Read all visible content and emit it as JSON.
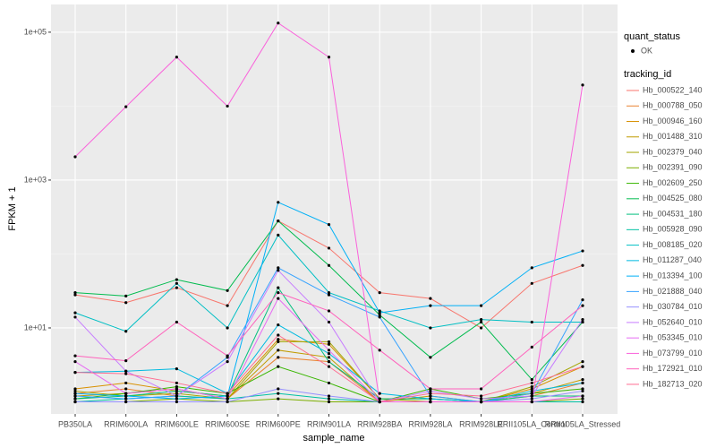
{
  "chart_data": {
    "type": "line",
    "x_label": "sample_name",
    "y_label": "FPKM + 1",
    "categories": [
      "PB350LA",
      "RRIM600LA",
      "RRIM600LE",
      "RRIM600SE",
      "RRIM600PE",
      "RRIM901LA",
      "RRIM928BA",
      "RRIM928LA",
      "RRIM928LE",
      "RRII105LA_Control",
      "RRII105LA_Stressed"
    ],
    "ylim": [
      0.686,
      237000
    ],
    "log_y": true,
    "grid": true,
    "yticks": [
      {
        "value": 10,
        "label": "1e+01"
      },
      {
        "value": 1000,
        "label": "1e+03"
      },
      {
        "value": 100000,
        "label": "1e+05"
      }
    ],
    "point_legend_title": "quant_status",
    "point_legend_label": "OK",
    "legend_title": "tracking_id",
    "legend_position": "right",
    "series": [
      {
        "name": "Hb_000522_140",
        "color": "#F8766D",
        "values": [
          28,
          22,
          35,
          20,
          280,
          120,
          30,
          25,
          10,
          40,
          70
        ]
      },
      {
        "name": "Hb_000788_050",
        "color": "#EA8331",
        "values": [
          1.3,
          1.5,
          1.2,
          1.1,
          4,
          3.5,
          1,
          1,
          1,
          1.2,
          1.8
        ]
      },
      {
        "name": "Hb_000946_160",
        "color": "#D89000",
        "values": [
          1.5,
          1.8,
          1.4,
          1.2,
          7,
          6,
          1.1,
          1.1,
          1,
          1.5,
          3
        ]
      },
      {
        "name": "Hb_001488_310",
        "color": "#C09B00",
        "values": [
          1.2,
          1.3,
          1.5,
          1.1,
          5,
          4,
          1,
          1.2,
          1,
          1.3,
          2
        ]
      },
      {
        "name": "Hb_002379_040",
        "color": "#A3A500",
        "values": [
          1.4,
          1.2,
          1.3,
          1.1,
          6.5,
          6.5,
          1.1,
          1,
          1,
          1.6,
          3.5
        ]
      },
      {
        "name": "Hb_002391_090",
        "color": "#7CAE00",
        "values": [
          1,
          1,
          1.1,
          1,
          1.1,
          1,
          1,
          1,
          1,
          1,
          1.1
        ]
      },
      {
        "name": "Hb_002609_250",
        "color": "#39B600",
        "values": [
          1.1,
          1.3,
          1.6,
          1.3,
          3,
          1.8,
          1,
          1.5,
          1.1,
          1.3,
          1.5
        ]
      },
      {
        "name": "Hb_004525_080",
        "color": "#00BB4E",
        "values": [
          30,
          27,
          45,
          32,
          280,
          70,
          15,
          4,
          12,
          2,
          12
        ]
      },
      {
        "name": "Hb_004531_180",
        "color": "#00BF7D",
        "values": [
          1.1,
          1.2,
          1.4,
          1.2,
          35,
          3.5,
          1.1,
          1.1,
          1,
          1.2,
          1.2
        ]
      },
      {
        "name": "Hb_005928_090",
        "color": "#00C1A3",
        "values": [
          1,
          1.1,
          1.2,
          1.1,
          1.3,
          1.1,
          1,
          1,
          1,
          1,
          1
        ]
      },
      {
        "name": "Hb_008185_020",
        "color": "#00BFC4",
        "values": [
          16,
          9,
          40,
          10,
          180,
          30,
          17,
          10,
          13,
          12,
          12
        ]
      },
      {
        "name": "Hb_011287_040",
        "color": "#00BAE0",
        "values": [
          2.5,
          2.6,
          2.8,
          1.3,
          11,
          4.5,
          1.3,
          1.1,
          1,
          1.4,
          1.8
        ]
      },
      {
        "name": "Hb_013394_100",
        "color": "#00B0F6",
        "values": [
          1.3,
          1.2,
          1.1,
          1.2,
          500,
          250,
          16,
          20,
          20,
          65,
          110
        ]
      },
      {
        "name": "Hb_021888_040",
        "color": "#35A2FF",
        "values": [
          1.2,
          1.1,
          1.2,
          4,
          65,
          28,
          14,
          1.2,
          1,
          1.3,
          24
        ]
      },
      {
        "name": "Hb_030784_010",
        "color": "#9590FF",
        "values": [
          1,
          1,
          1,
          1,
          1.5,
          1.2,
          1,
          1,
          1,
          1.1,
          1.4
        ]
      },
      {
        "name": "Hb_052640_010",
        "color": "#C77CFF",
        "values": [
          14,
          2.6,
          1.2,
          3.5,
          60,
          12,
          1,
          1.4,
          1.1,
          1.2,
          13
        ]
      },
      {
        "name": "Hb_053345_010",
        "color": "#E76BF3",
        "values": [
          3.5,
          1.3,
          1.5,
          1.1,
          25,
          5,
          1,
          1,
          1,
          1,
          1.2
        ]
      },
      {
        "name": "Hb_073799_010",
        "color": "#FA62DB",
        "values": [
          2065,
          9800,
          46000,
          10000,
          133000,
          46000,
          1,
          1,
          1,
          1,
          19300
        ]
      },
      {
        "name": "Hb_172921_010",
        "color": "#FF62BC",
        "values": [
          4.2,
          3.6,
          12,
          4.2,
          30,
          17,
          5,
          1.5,
          1.5,
          5.5,
          20
        ]
      },
      {
        "name": "Hb_182713_020",
        "color": "#FF6C91",
        "values": [
          2.5,
          2.4,
          1.8,
          1.3,
          8,
          3,
          1,
          1.3,
          1.2,
          1.8,
          3
        ]
      }
    ]
  }
}
